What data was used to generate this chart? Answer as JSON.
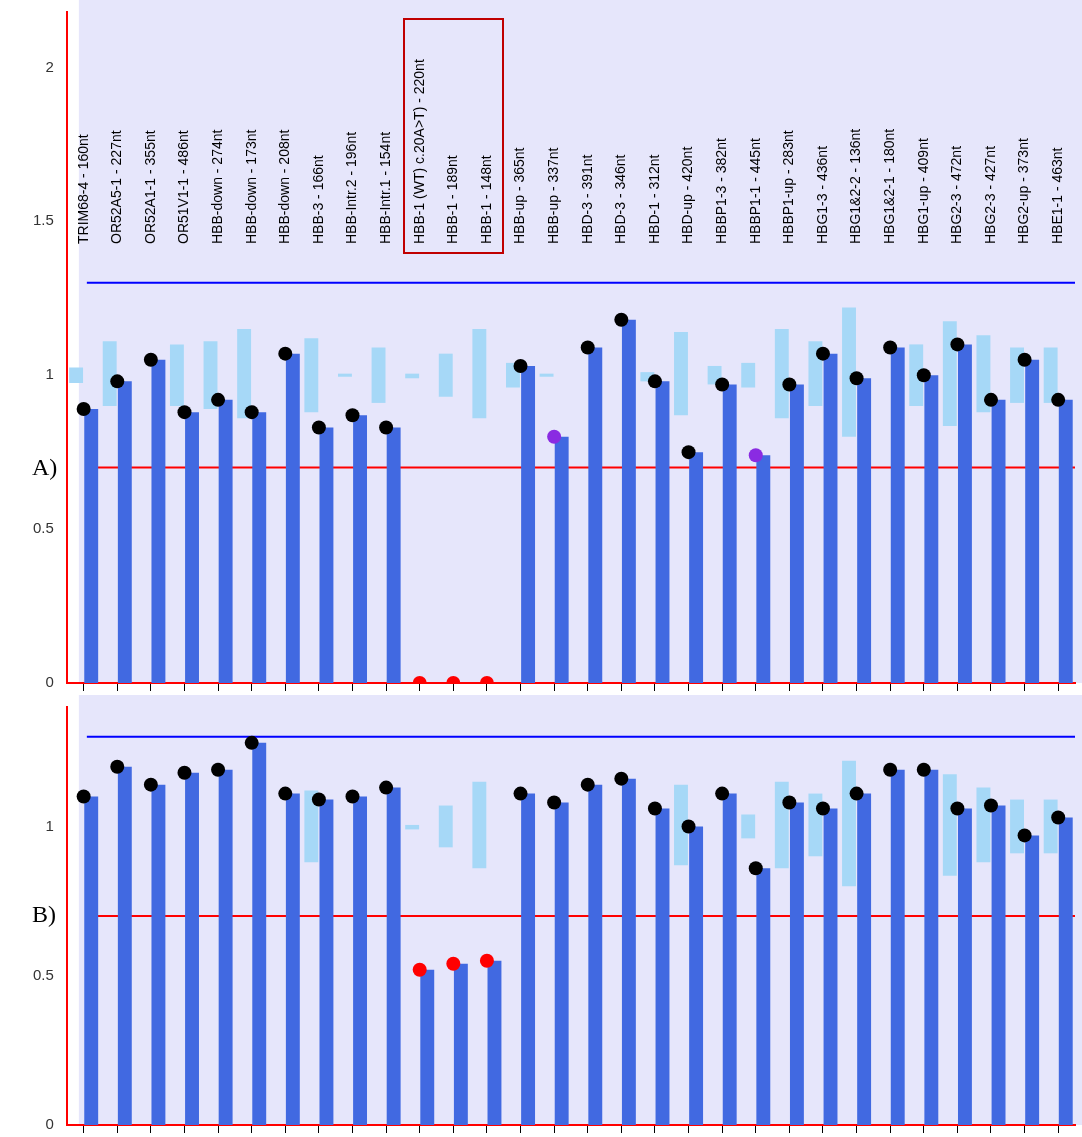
{
  "chart_data": [
    {
      "type": "bar",
      "categories": [
        "TRIM68-4 - 160nt",
        "OR52A5-1 - 227nt",
        "OR52A1-1 - 355nt",
        "OR51V1-1 - 486nt",
        "HBB-down - 274nt",
        "HBB-down - 173nt",
        "HBB-down - 208nt",
        "HBB-3 - 166nt",
        "HBB-Intr.2 - 196nt",
        "HBB-Intr.1 - 154nt",
        "HBB-1 (WT) c.20A>T) - 220nt",
        "HBB-1 - 189nt",
        "HBB-1 - 148nt",
        "HBB-up - 365nt",
        "HBB-up - 337nt",
        "HBD-3 - 391nt",
        "HBD-3 - 346nt",
        "HBD-1 - 312nt",
        "HBD-up - 420nt",
        "HBBP1-3 - 382nt",
        "HBBP1-1 - 445nt",
        "HBBP1-up - 283nt",
        "HBG1-3 - 436nt",
        "HBG1&2-2 - 136nt",
        "HBG1&2-1 - 180nt",
        "HBG1-up - 409nt",
        "HBG2-3 - 472nt",
        "HBG2-3 - 427nt",
        "HBG2-up - 373nt",
        "HBE1-1 - 463nt"
      ],
      "ylim": [
        0,
        2.18
      ],
      "yticks": [
        0,
        0.5,
        1,
        1.5,
        2
      ],
      "series": [
        {
          "color": "#4169e1",
          "values": [
            0.89,
            0.98,
            1.05,
            0.88,
            0.92,
            0.88,
            1.07,
            0.83,
            0.87,
            0.83,
            0,
            0,
            0,
            1.03,
            0.8,
            1.09,
            1.18,
            0.98,
            0.75,
            0.97,
            0.74,
            0.97,
            1.07,
            0.99,
            1.09,
            1.0,
            1.1,
            0.92,
            1.05,
            0.92
          ]
        },
        {
          "color": "#a6d8f7",
          "base": [
            0.975,
            0.9,
            null,
            0.9,
            0.89,
            0.86,
            null,
            0.88,
            0.995,
            0.91,
            0.99,
            0.93,
            0.86,
            0.96,
            0.995,
            null,
            null,
            0.98,
            0.87,
            0.97,
            0.96,
            0.86,
            0.9,
            0.8,
            null,
            0.9,
            0.835,
            0.88,
            0.91,
            0.91
          ],
          "values": [
            0.05,
            0.21,
            null,
            0.2,
            0.22,
            0.29,
            null,
            0.24,
            0.01,
            0.18,
            0.015,
            0.14,
            0.29,
            0.08,
            0.01,
            null,
            null,
            0.03,
            0.27,
            0.06,
            0.08,
            0.29,
            0.21,
            0.42,
            null,
            0.2,
            0.34,
            0.25,
            0.18,
            0.18
          ]
        },
        {
          "type": "scatter",
          "marker": "circle",
          "colors": [
            "#000000",
            "#000000",
            "#000000",
            "#000000",
            "#000000",
            "#000000",
            "#000000",
            "#000000",
            "#000000",
            "#000000",
            "#ff0000",
            "#ff0000",
            "#ff0000",
            "#000000",
            "#8a2be2",
            "#000000",
            "#000000",
            "#000000",
            "#000000",
            "#000000",
            "#8a2be2",
            "#000000",
            "#000000",
            "#000000",
            "#000000",
            "#000000",
            "#000000",
            "#000000",
            "#000000",
            "#000000"
          ],
          "values": [
            0.89,
            0.98,
            1.05,
            0.88,
            0.92,
            0.88,
            1.07,
            0.83,
            0.87,
            0.83,
            0,
            0,
            0,
            1.03,
            0.8,
            1.09,
            1.18,
            0.98,
            0.75,
            0.97,
            0.74,
            0.97,
            1.07,
            0.99,
            1.09,
            1.0,
            1.1,
            0.92,
            1.05,
            0.92
          ]
        }
      ],
      "ref_lines": [
        {
          "axis": "y",
          "value": 1.3,
          "color": "#0000ff"
        },
        {
          "axis": "y",
          "value": 0.7,
          "color": "#ff0000"
        }
      ],
      "annotations": [
        "A)"
      ]
    },
    {
      "type": "bar",
      "categories": [
        null,
        null,
        null,
        null,
        null,
        null,
        null,
        null,
        null,
        null,
        null,
        null,
        null,
        null,
        null,
        null,
        null,
        null,
        null,
        null,
        null,
        null,
        null,
        null,
        null,
        null,
        null,
        null,
        null,
        null
      ],
      "tick_labels": "y",
      "ylim": [
        0,
        1.4
      ],
      "yticks": [
        0,
        0.5,
        1
      ],
      "series": [
        {
          "color": "#4169e1",
          "values": [
            1.1,
            1.2,
            1.14,
            1.18,
            1.19,
            1.28,
            1.11,
            1.09,
            1.1,
            1.13,
            0.52,
            0.54,
            0.55,
            1.11,
            1.08,
            1.14,
            1.16,
            1.06,
            1.0,
            1.11,
            0.86,
            1.08,
            1.06,
            1.11,
            1.19,
            1.19,
            1.06,
            1.07,
            0.97,
            1.03
          ]
        },
        {
          "color": "#a6d8f7",
          "base": [
            null,
            null,
            null,
            null,
            null,
            null,
            null,
            0.88,
            null,
            null,
            0.99,
            0.93,
            0.86,
            null,
            null,
            null,
            null,
            null,
            0.87,
            null,
            0.96,
            0.86,
            0.9,
            0.8,
            null,
            null,
            0.835,
            0.88,
            0.91,
            0.91
          ],
          "values": [
            null,
            null,
            null,
            null,
            null,
            null,
            null,
            0.24,
            null,
            null,
            0.015,
            0.14,
            0.29,
            null,
            null,
            null,
            null,
            null,
            0.27,
            null,
            0.08,
            0.29,
            0.21,
            0.42,
            null,
            null,
            0.34,
            0.25,
            0.18,
            0.18
          ]
        },
        {
          "type": "scatter",
          "marker": "circle",
          "colors": [
            "#000000",
            "#000000",
            "#000000",
            "#000000",
            "#000000",
            "#000000",
            "#000000",
            "#000000",
            "#000000",
            "#000000",
            "#ff0000",
            "#ff0000",
            "#ff0000",
            "#000000",
            "#000000",
            "#000000",
            "#000000",
            "#000000",
            "#000000",
            "#000000",
            "#000000",
            "#000000",
            "#000000",
            "#000000",
            "#000000",
            "#000000",
            "#000000",
            "#000000",
            "#000000",
            "#000000"
          ],
          "values": [
            1.1,
            1.2,
            1.14,
            1.18,
            1.19,
            1.28,
            1.11,
            1.09,
            1.1,
            1.13,
            0.52,
            0.54,
            0.55,
            1.11,
            1.08,
            1.14,
            1.16,
            1.06,
            1.0,
            1.11,
            0.86,
            1.08,
            1.06,
            1.11,
            1.19,
            1.19,
            1.06,
            1.07,
            0.97,
            1.03
          ]
        }
      ],
      "ref_lines": [
        {
          "axis": "y",
          "value": 1.3,
          "color": "#0000ff"
        },
        {
          "axis": "y",
          "value": 0.7,
          "color": "#ff0000"
        }
      ],
      "annotations": [
        "B)"
      ]
    }
  ]
}
